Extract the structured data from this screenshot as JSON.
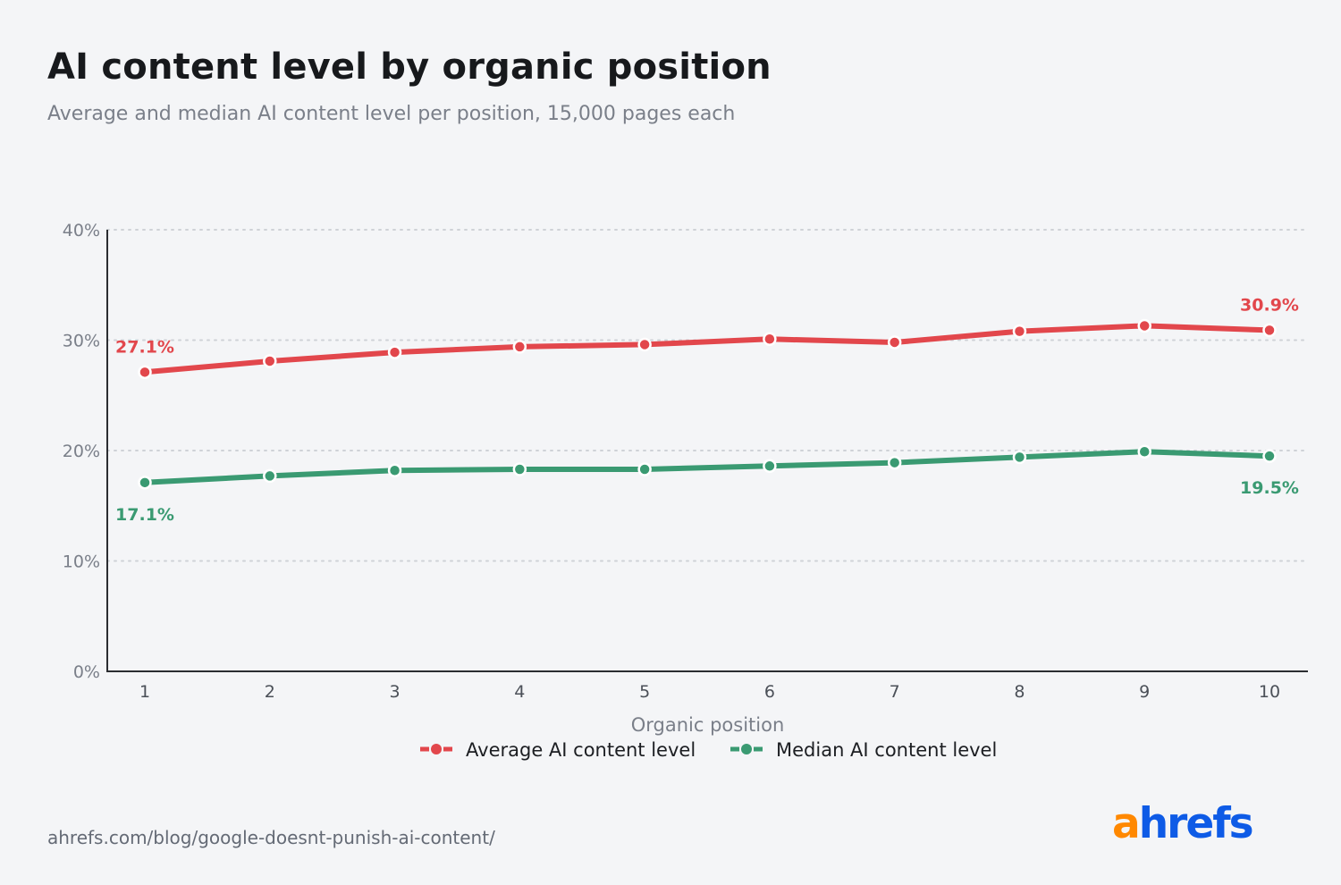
{
  "header": {
    "title": "AI content level by organic position",
    "subtitle": "Average and median AI content level per position, 15,000 pages each"
  },
  "footer": {
    "source": "ahrefs.com/blog/google-doesnt-punish-ai-content/",
    "logo_a": "a",
    "logo_rest": "hrefs",
    "logo_color_a": "#ff8800",
    "logo_color_rest": "#0e5be6"
  },
  "chart_data": {
    "type": "line",
    "title": "AI content level by organic position",
    "subtitle": "Average and median AI content level per position, 15,000 pages each",
    "xlabel": "Organic position",
    "ylabel": "",
    "x": [
      1,
      2,
      3,
      4,
      5,
      6,
      7,
      8,
      9,
      10
    ],
    "x_tick_labels": [
      "1",
      "2",
      "3",
      "4",
      "5",
      "6",
      "7",
      "8",
      "9",
      "10"
    ],
    "ylim": [
      0,
      40
    ],
    "y_ticks": [
      0,
      10,
      20,
      30,
      40
    ],
    "y_tick_labels": [
      "0%",
      "10%",
      "20%",
      "30%",
      "40%"
    ],
    "grid": "horizontal dotted",
    "legend_position": "bottom-center",
    "series": [
      {
        "name": "Average AI content level",
        "color": "#e2474c",
        "values": [
          27.1,
          28.1,
          28.9,
          29.4,
          29.6,
          30.1,
          29.8,
          30.8,
          31.3,
          30.9
        ],
        "data_labels": [
          {
            "index": 0,
            "text": "27.1%",
            "position": "above"
          },
          {
            "index": 9,
            "text": "30.9%",
            "position": "above"
          }
        ]
      },
      {
        "name": "Median AI content level",
        "color": "#3a9a72",
        "values": [
          17.1,
          17.7,
          18.2,
          18.3,
          18.3,
          18.6,
          18.9,
          19.4,
          19.9,
          19.5
        ],
        "data_labels": [
          {
            "index": 0,
            "text": "17.1%",
            "position": "below"
          },
          {
            "index": 9,
            "text": "19.5%",
            "position": "below"
          }
        ]
      }
    ]
  }
}
